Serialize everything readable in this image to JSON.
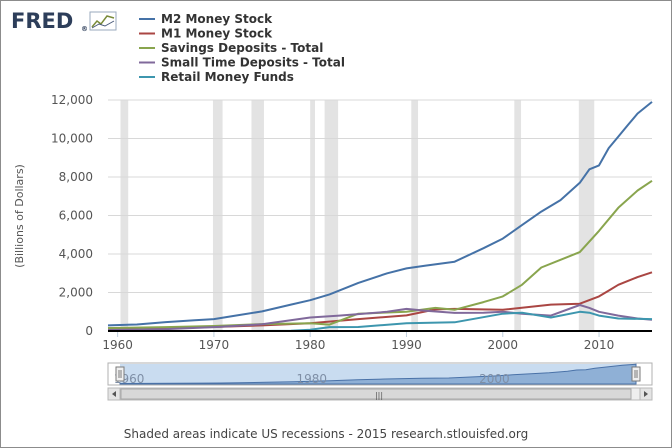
{
  "logo": {
    "text": "FRED",
    "registered": "®"
  },
  "footer": "Shaded areas indicate US recessions - 2015 research.stlouisfed.org",
  "navigator": {
    "labels": [
      "1960",
      "1980",
      "2000"
    ],
    "grip": "|||"
  },
  "chart_data": {
    "type": "line",
    "title": "",
    "xlabel": "",
    "ylabel": "(Billions of Dollars)",
    "xlim": [
      1959.0,
      2015.5
    ],
    "ylim": [
      0,
      12000
    ],
    "x_ticks": [
      "1960",
      "1970",
      "1980",
      "1990",
      "2000",
      "2010"
    ],
    "y_ticks": [
      "0",
      "2,000",
      "4,000",
      "6,000",
      "8,000",
      "10,000",
      "12,000"
    ],
    "grid": "horizontal",
    "legend": "top-left",
    "recessions": [
      [
        1960.3,
        1961.1
      ],
      [
        1969.9,
        1970.9
      ],
      [
        1973.9,
        1975.2
      ],
      [
        1980.0,
        1980.5
      ],
      [
        1981.5,
        1982.9
      ],
      [
        1990.5,
        1991.2
      ],
      [
        2001.2,
        2001.9
      ],
      [
        2007.9,
        2009.5
      ]
    ],
    "series": [
      {
        "name": "M2 Money Stock",
        "color": "#4572a7",
        "x": [
          1959,
          1962,
          1965,
          1968,
          1970,
          1972,
          1975,
          1978,
          1980,
          1982,
          1985,
          1988,
          1990,
          1992,
          1995,
          1998,
          2000,
          2002,
          2004,
          2006,
          2008,
          2009,
          2010,
          2011,
          2012,
          2013,
          2014,
          2015.5
        ],
        "y": [
          290,
          340,
          460,
          560,
          620,
          780,
          1020,
          1370,
          1600,
          1900,
          2500,
          3000,
          3250,
          3400,
          3600,
          4300,
          4800,
          5500,
          6200,
          6800,
          7700,
          8400,
          8600,
          9500,
          10100,
          10700,
          11300,
          11900
        ]
      },
      {
        "name": "M1 Money Stock",
        "color": "#aa4643",
        "x": [
          1959,
          1965,
          1970,
          1975,
          1980,
          1985,
          1990,
          1993,
          1995,
          2000,
          2005,
          2008,
          2010,
          2011,
          2012,
          2013,
          2014,
          2015.5
        ],
        "y": [
          140,
          165,
          210,
          290,
          400,
          620,
          810,
          1120,
          1150,
          1100,
          1370,
          1420,
          1800,
          2100,
          2400,
          2600,
          2800,
          3050
        ]
      },
      {
        "name": "Savings Deposits - Total",
        "color": "#89a54e",
        "x": [
          1959,
          1965,
          1970,
          1975,
          1980,
          1982,
          1985,
          1990,
          1993,
          1995,
          1998,
          2000,
          2002,
          2004,
          2006,
          2008,
          2010,
          2012,
          2014,
          2015.5
        ],
        "y": [
          150,
          200,
          260,
          360,
          400,
          330,
          900,
          1000,
          1200,
          1100,
          1500,
          1800,
          2400,
          3300,
          3700,
          4100,
          5200,
          6400,
          7300,
          7800
        ]
      },
      {
        "name": "Small Time Deposits - Total",
        "color": "#80699b",
        "x": [
          1959,
          1965,
          1970,
          1975,
          1980,
          1983,
          1985,
          1988,
          1990,
          1992,
          1995,
          1998,
          2000,
          2002,
          2005,
          2008,
          2009,
          2010,
          2012,
          2014,
          2015.5
        ],
        "y": [
          50,
          100,
          200,
          350,
          700,
          800,
          880,
          1000,
          1150,
          1050,
          940,
          950,
          1000,
          900,
          800,
          1350,
          1200,
          1000,
          800,
          650,
          580
        ]
      },
      {
        "name": "Retail Money Funds",
        "color": "#3d96ae",
        "x": [
          1959,
          1974,
          1978,
          1980,
          1982,
          1985,
          1990,
          1995,
          2000,
          2002,
          2005,
          2008,
          2009,
          2010,
          2012,
          2015.5
        ],
        "y": [
          0,
          0,
          10,
          60,
          200,
          210,
          400,
          450,
          900,
          950,
          700,
          1000,
          950,
          800,
          650,
          620
        ]
      }
    ]
  }
}
